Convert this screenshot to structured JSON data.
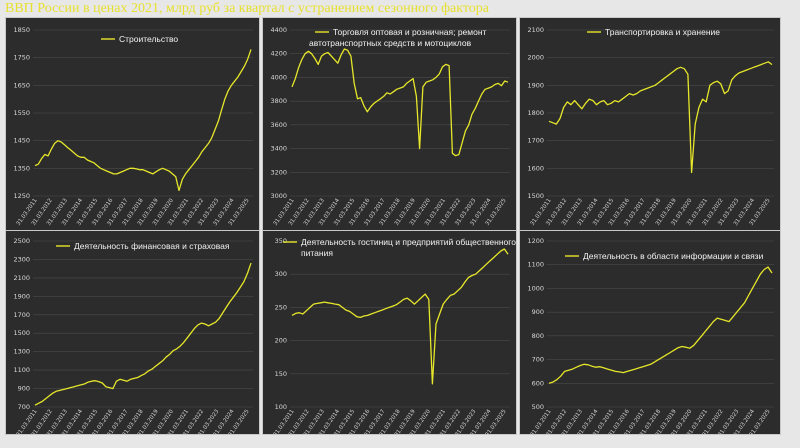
{
  "page": {
    "title": "ВВП России в ценах 2021, млрд руб за квартал с устранением сезонного фактора",
    "accent_color": "#e8e030",
    "panel_background": "#2c2c2c",
    "line_color": "#e6e62a"
  },
  "chart_data": [
    {
      "type": "line",
      "title_lines": [
        "Строительство"
      ],
      "yticks": [
        1250,
        1350,
        1450,
        1550,
        1650,
        1750,
        1850
      ],
      "ylim": [
        1250,
        1850
      ],
      "xtick_labels": [
        "31.03.2011",
        "31.03.2012",
        "31.03.2013",
        "31.03.2014",
        "31.03.2015",
        "31.03.2016",
        "31.03.2017",
        "31.03.2018",
        "31.03.2019",
        "31.03.2020",
        "31.03.2021",
        "31.03.2022",
        "31.03.2023",
        "31.03.2024",
        "31.03.2025"
      ],
      "series": [
        {
          "values": [
            1360,
            1365,
            1385,
            1400,
            1395,
            1420,
            1440,
            1450,
            1445,
            1435,
            1425,
            1415,
            1405,
            1395,
            1390,
            1390,
            1380,
            1375,
            1370,
            1360,
            1350,
            1345,
            1340,
            1335,
            1330,
            1330,
            1335,
            1340,
            1345,
            1350,
            1350,
            1348,
            1345,
            1345,
            1340,
            1335,
            1330,
            1338,
            1345,
            1350,
            1345,
            1340,
            1330,
            1320,
            1270,
            1310,
            1330,
            1345,
            1360,
            1375,
            1390,
            1410,
            1425,
            1440,
            1460,
            1490,
            1520,
            1560,
            1600,
            1630,
            1650,
            1665,
            1680,
            1700,
            1720,
            1745,
            1780
          ]
        }
      ]
    },
    {
      "type": "line",
      "title_lines": [
        "Торговля оптовая и розничная; ремонт",
        "автотранспортных средств и мотоциклов"
      ],
      "yticks": [
        3000,
        3200,
        3400,
        3600,
        3800,
        4000,
        4200,
        4400
      ],
      "ylim": [
        3000,
        4400
      ],
      "xtick_labels": [
        "31.03.2011",
        "31.03.2012",
        "31.03.2013",
        "31.03.2014",
        "31.03.2015",
        "31.03.2016",
        "31.03.2017",
        "31.03.2018",
        "31.03.2019",
        "31.03.2020",
        "31.03.2021",
        "31.03.2022",
        "31.03.2023",
        "31.03.2024",
        "31.03.2025"
      ],
      "series": [
        {
          "values": [
            3920,
            3990,
            4080,
            4150,
            4200,
            4220,
            4200,
            4160,
            4110,
            4180,
            4200,
            4210,
            4180,
            4150,
            4120,
            4190,
            4240,
            4230,
            4180,
            3950,
            3820,
            3830,
            3760,
            3710,
            3750,
            3780,
            3800,
            3820,
            3840,
            3870,
            3860,
            3880,
            3900,
            3910,
            3920,
            3950,
            3970,
            3990,
            3840,
            3400,
            3920,
            3960,
            3970,
            3980,
            4000,
            4030,
            4090,
            4110,
            4100,
            3360,
            3340,
            3350,
            3450,
            3550,
            3600,
            3690,
            3740,
            3800,
            3860,
            3900,
            3910,
            3920,
            3940,
            3950,
            3930,
            3970,
            3960
          ]
        }
      ]
    },
    {
      "type": "line",
      "title_lines": [
        "Транспортировка и хранение"
      ],
      "yticks": [
        1500,
        1600,
        1700,
        1800,
        1900,
        2000,
        2100
      ],
      "ylim": [
        1500,
        2100
      ],
      "xtick_labels": [
        "31.03.2011",
        "31.03.2012",
        "31.03.2013",
        "31.03.2014",
        "31.03.2015",
        "31.03.2016",
        "31.03.2017",
        "31.03.2018",
        "31.03.2019",
        "31.03.2020",
        "31.03.2021",
        "31.03.2022",
        "31.03.2023",
        "31.03.2024",
        "31.03.2025"
      ],
      "series": [
        {
          "values": [
            1770,
            1765,
            1760,
            1780,
            1820,
            1840,
            1830,
            1845,
            1830,
            1815,
            1835,
            1850,
            1845,
            1830,
            1840,
            1845,
            1830,
            1835,
            1845,
            1840,
            1850,
            1860,
            1870,
            1865,
            1870,
            1880,
            1885,
            1890,
            1895,
            1900,
            1910,
            1920,
            1930,
            1940,
            1950,
            1960,
            1965,
            1960,
            1940,
            1585,
            1760,
            1820,
            1850,
            1840,
            1900,
            1910,
            1915,
            1905,
            1870,
            1880,
            1920,
            1935,
            1945,
            1950,
            1955,
            1960,
            1965,
            1970,
            1975,
            1980,
            1985,
            1975
          ]
        }
      ]
    },
    {
      "type": "line",
      "title_lines": [
        "Деятельность финансовая и страховая"
      ],
      "yticks": [
        700,
        900,
        1100,
        1300,
        1500,
        1700,
        1900,
        2100,
        2300,
        2500
      ],
      "ylim": [
        700,
        2500
      ],
      "xtick_labels": [
        "31.03.2011",
        "31.03.2012",
        "31.03.2013",
        "31.03.2014",
        "31.03.2015",
        "31.03.2016",
        "31.03.2017",
        "31.03.2018",
        "31.03.2019",
        "31.03.2020",
        "31.03.2021",
        "31.03.2022",
        "31.03.2023",
        "31.03.2024",
        "31.03.2025"
      ],
      "series": [
        {
          "values": [
            720,
            740,
            760,
            790,
            820,
            850,
            870,
            880,
            890,
            900,
            910,
            920,
            930,
            940,
            950,
            970,
            980,
            985,
            975,
            960,
            920,
            910,
            900,
            980,
            1000,
            990,
            980,
            1000,
            1010,
            1020,
            1040,
            1060,
            1090,
            1110,
            1140,
            1170,
            1200,
            1240,
            1270,
            1310,
            1330,
            1360,
            1400,
            1450,
            1500,
            1550,
            1590,
            1610,
            1600,
            1580,
            1600,
            1620,
            1660,
            1720,
            1780,
            1840,
            1890,
            1940,
            2000,
            2060,
            2150,
            2260
          ]
        }
      ]
    },
    {
      "type": "line",
      "title_lines": [
        "Деятельность гостиниц и предприятий общественного",
        "питания"
      ],
      "yticks": [
        100,
        150,
        200,
        250,
        300,
        350
      ],
      "ylim": [
        100,
        350
      ],
      "xtick_labels": [
        "31.03.2011",
        "31.03.2012",
        "31.03.2013",
        "31.03.2014",
        "31.03.2015",
        "31.03.2016",
        "31.03.2017",
        "31.03.2018",
        "31.03.2019",
        "31.03.2020",
        "31.03.2021",
        "31.03.2022",
        "31.03.2023",
        "31.03.2024",
        "31.03.2025"
      ],
      "series": [
        {
          "values": [
            238,
            241,
            242,
            240,
            245,
            250,
            255,
            256,
            257,
            258,
            257,
            256,
            255,
            254,
            250,
            246,
            244,
            240,
            236,
            235,
            237,
            238,
            240,
            242,
            244,
            246,
            248,
            250,
            252,
            254,
            258,
            262,
            264,
            260,
            255,
            260,
            265,
            270,
            262,
            135,
            225,
            240,
            255,
            262,
            268,
            270,
            275,
            280,
            288,
            295,
            298,
            300,
            305,
            310,
            315,
            320,
            325,
            330,
            335,
            338,
            330
          ]
        }
      ]
    },
    {
      "type": "line",
      "title_lines": [
        "Деятельность в области информации и связи"
      ],
      "yticks": [
        500,
        600,
        700,
        800,
        900,
        1000,
        1100,
        1200
      ],
      "ylim": [
        500,
        1200
      ],
      "xtick_labels": [
        "31.03.2011",
        "31.03.2012",
        "31.03.2013",
        "31.03.2014",
        "31.03.2015",
        "31.03.2016",
        "31.03.2017",
        "31.03.2018",
        "31.03.2019",
        "31.03.2020",
        "31.03.2021",
        "31.03.2022",
        "31.03.2023",
        "31.03.2024",
        "31.03.2025"
      ],
      "series": [
        {
          "values": [
            600,
            605,
            615,
            630,
            650,
            655,
            660,
            668,
            675,
            680,
            678,
            672,
            668,
            670,
            665,
            660,
            655,
            650,
            648,
            645,
            650,
            655,
            660,
            665,
            670,
            675,
            680,
            690,
            700,
            710,
            720,
            730,
            740,
            750,
            755,
            752,
            748,
            760,
            780,
            800,
            820,
            840,
            860,
            875,
            870,
            865,
            860,
            880,
            900,
            920,
            940,
            970,
            1000,
            1030,
            1060,
            1080,
            1090,
            1065
          ]
        }
      ]
    }
  ]
}
